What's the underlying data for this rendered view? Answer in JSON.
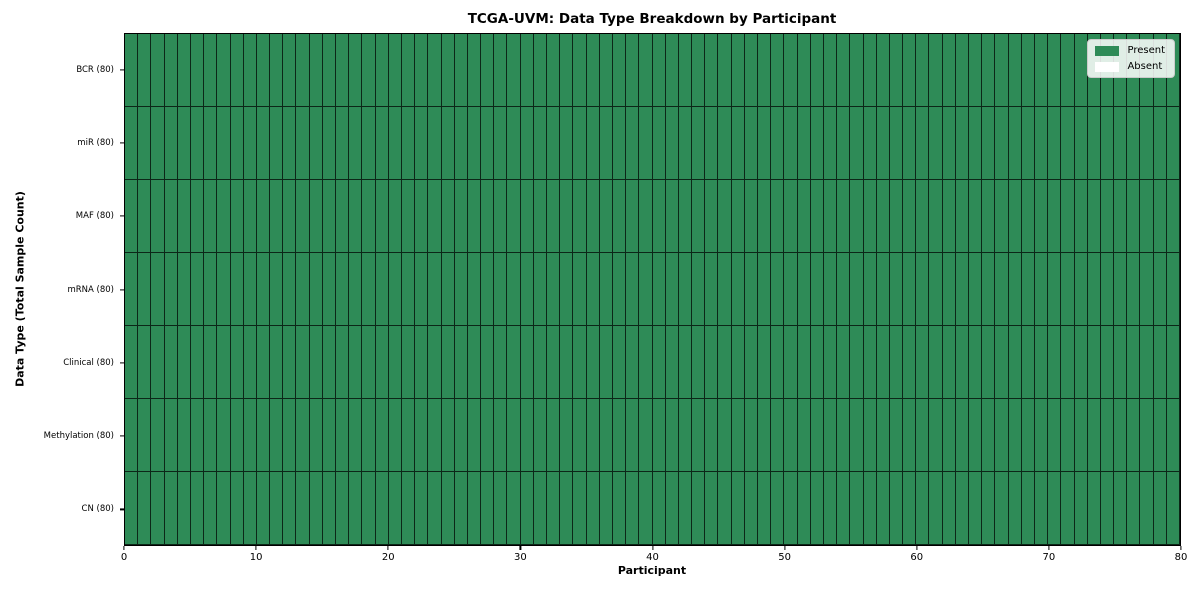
{
  "chart_data": {
    "type": "heatmap",
    "title": "TCGA-UVM: Data Type Breakdown by Participant",
    "xlabel": "Participant",
    "ylabel": "Data Type (Total Sample Count)",
    "x_range": [
      0,
      80
    ],
    "x_ticks": [
      0,
      10,
      20,
      30,
      40,
      50,
      60,
      70,
      80
    ],
    "n_participants": 80,
    "rows": [
      {
        "label": "BCR (80)",
        "present": 80,
        "absent": 0
      },
      {
        "label": "miR (80)",
        "present": 80,
        "absent": 0
      },
      {
        "label": "MAF (80)",
        "present": 80,
        "absent": 0
      },
      {
        "label": "mRNA (80)",
        "present": 80,
        "absent": 0
      },
      {
        "label": "Clinical (80)",
        "present": 80,
        "absent": 0
      },
      {
        "label": "Methylation (80)",
        "present": 80,
        "absent": 0
      },
      {
        "label": "CN (80)",
        "present": 80,
        "absent": 0
      }
    ],
    "cell_key": {
      "1": "Present",
      "0": "Absent"
    },
    "matrix": [
      "11111111111111111111111111111111111111111111111111111111111111111111111111111111",
      "11111111111111111111111111111111111111111111111111111111111111111111111111111111",
      "11111111111111111111111111111111111111111111111111111111111111111111111111111111",
      "11111111111111111111111111111111111111111111111111111111111111111111111111111111",
      "11111111111111111111111111111111111111111111111111111111111111111111111111111111",
      "11111111111111111111111111111111111111111111111111111111111111111111111111111111",
      "11111111111111111111111111111111111111111111111111111111111111111111111111111111"
    ],
    "colors": {
      "present": "#2e8b57",
      "absent": "#ffffff",
      "cell_edge": "rgba(0,0,0,0.72)",
      "spine": "#000000"
    },
    "legend": {
      "position": "upper right",
      "entries": [
        {
          "label": "Present",
          "color": "#2e8b57"
        },
        {
          "label": "Absent",
          "color": "#ffffff"
        }
      ]
    }
  }
}
